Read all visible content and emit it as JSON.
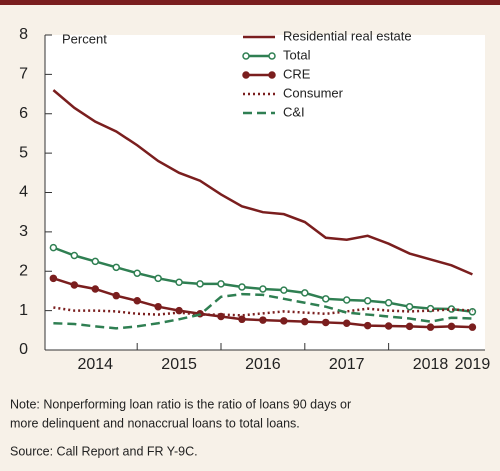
{
  "chart_data": {
    "type": "line",
    "axis_label": "Percent",
    "x": [
      2014.0,
      2014.25,
      2014.5,
      2014.75,
      2015.0,
      2015.25,
      2015.5,
      2015.75,
      2016.0,
      2016.25,
      2016.5,
      2016.75,
      2017.0,
      2017.25,
      2017.5,
      2017.75,
      2018.0,
      2018.25,
      2018.5,
      2018.75,
      2019.0
    ],
    "series": [
      {
        "name": "Residential real estate",
        "color": "#7a1e1e",
        "style": "solid",
        "marker": "none",
        "values": [
          6.6,
          6.15,
          5.8,
          5.55,
          5.2,
          4.8,
          4.5,
          4.3,
          3.95,
          3.65,
          3.5,
          3.45,
          3.25,
          2.85,
          2.8,
          2.9,
          2.7,
          2.45,
          2.3,
          2.15,
          1.92
        ]
      },
      {
        "name": "Total",
        "color": "#2f7f52",
        "style": "solid",
        "marker": "open",
        "values": [
          2.6,
          2.4,
          2.25,
          2.1,
          1.95,
          1.82,
          1.72,
          1.68,
          1.68,
          1.6,
          1.55,
          1.52,
          1.45,
          1.3,
          1.27,
          1.25,
          1.2,
          1.1,
          1.05,
          1.04,
          0.97
        ]
      },
      {
        "name": "CRE",
        "color": "#7a1e1e",
        "style": "solid",
        "marker": "filled",
        "values": [
          1.82,
          1.65,
          1.55,
          1.38,
          1.25,
          1.1,
          1.0,
          0.92,
          0.85,
          0.78,
          0.76,
          0.74,
          0.72,
          0.7,
          0.68,
          0.62,
          0.61,
          0.6,
          0.58,
          0.6,
          0.58
        ]
      },
      {
        "name": "Consumer",
        "color": "#7a1e1e",
        "style": "dotted",
        "marker": "none",
        "values": [
          1.08,
          1.0,
          1.0,
          0.98,
          0.92,
          0.9,
          0.95,
          0.9,
          0.9,
          0.88,
          0.93,
          0.98,
          0.95,
          0.92,
          0.98,
          1.05,
          1.0,
          0.98,
          1.0,
          1.03,
          1.0
        ]
      },
      {
        "name": "C&I",
        "color": "#2f7f52",
        "style": "dashed",
        "marker": "none",
        "values": [
          0.68,
          0.66,
          0.6,
          0.55,
          0.6,
          0.68,
          0.78,
          0.9,
          1.35,
          1.42,
          1.4,
          1.3,
          1.2,
          1.1,
          0.95,
          0.9,
          0.85,
          0.8,
          0.72,
          0.82,
          0.8
        ]
      }
    ],
    "xlim": [
      2013.9,
      2019.15
    ],
    "xticks": [
      {
        "value": 2014.5,
        "label": "2014"
      },
      {
        "value": 2015.5,
        "label": "2015"
      },
      {
        "value": 2016.5,
        "label": "2016"
      },
      {
        "value": 2017.5,
        "label": "2017"
      },
      {
        "value": 2018.5,
        "label": "2018"
      },
      {
        "value": 2019.0,
        "label": "2019"
      }
    ],
    "xtick_marks": [
      2015,
      2016,
      2017,
      2018
    ],
    "ylim": [
      0,
      8
    ],
    "yticks": [
      0,
      1,
      2,
      3,
      4,
      5,
      6,
      7,
      8
    ],
    "legend": "upper right",
    "notes": [
      "Note: Nonperforming loan ratio is the ratio of loans 90 days or",
      "more delinquent and nonaccrual loans to total loans.",
      "Source: Call Report and FR Y-9C."
    ]
  }
}
